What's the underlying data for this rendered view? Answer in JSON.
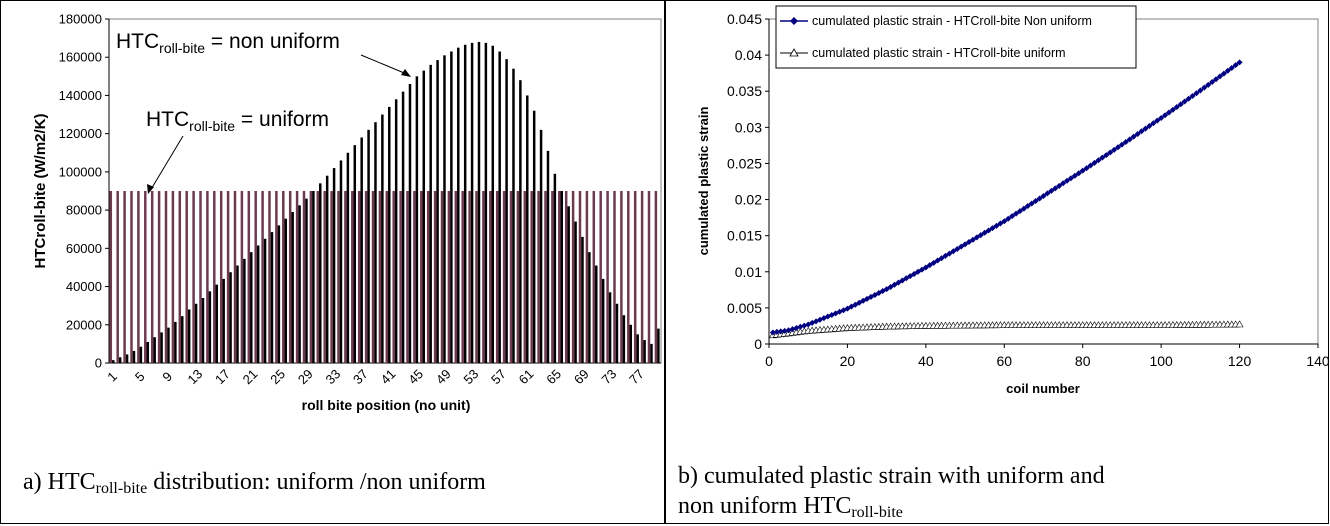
{
  "panel_a": {
    "caption": {
      "prefix": "a) HTC",
      "sub": "roll-bite",
      "suffix": " distribution: uniform /non uniform"
    },
    "annotations": {
      "non_uniform": {
        "prefix": "HTC",
        "sub": "roll-bite",
        "suffix": " = non uniform"
      },
      "uniform": {
        "prefix": "HTC",
        "sub": "roll-bite",
        "suffix": " = uniform"
      }
    }
  },
  "panel_b": {
    "caption": {
      "line1": "b) cumulated plastic strain with uniform and",
      "line2_prefix": "non uniform HTC",
      "line2_sub": "roll-bite"
    }
  },
  "colors": {
    "uniform_bar": "#6b3a4f",
    "non_uniform_bar": "#000000",
    "non_uniform_series": "#000080",
    "uniform_series": "#000000",
    "plot_border": "#808080"
  },
  "chart_data": [
    {
      "type": "bar",
      "xlabel": "roll bite position (no unit)",
      "ylabel": "HTCroll-bite (W/m2/K)",
      "ylim": [
        0,
        180000
      ],
      "y_ticks": [
        "0",
        "20000",
        "40000",
        "60000",
        "80000",
        "100000",
        "120000",
        "140000",
        "160000",
        "180000"
      ],
      "x_tick_labels": [
        "1",
        "5",
        "9",
        "13",
        "17",
        "21",
        "25",
        "29",
        "33",
        "37",
        "41",
        "45",
        "49",
        "53",
        "57",
        "61",
        "65",
        "69",
        "73",
        "77"
      ],
      "n_positions": 80,
      "legend": "none",
      "series": [
        {
          "values": [
            90000,
            90000,
            90000,
            90000,
            90000,
            90000,
            90000,
            90000,
            90000,
            90000,
            90000,
            90000,
            90000,
            90000,
            90000,
            90000,
            90000,
            90000,
            90000,
            90000,
            90000,
            90000,
            90000,
            90000,
            90000,
            90000,
            90000,
            90000,
            90000,
            90000,
            90000,
            90000,
            90000,
            90000,
            90000,
            90000,
            90000,
            90000,
            90000,
            90000,
            90000,
            90000,
            90000,
            90000,
            90000,
            90000,
            90000,
            90000,
            90000,
            90000,
            90000,
            90000,
            90000,
            90000,
            90000,
            90000,
            90000,
            90000,
            90000,
            90000,
            90000,
            90000,
            90000,
            90000,
            90000,
            90000,
            90000,
            90000,
            90000,
            90000,
            90000,
            90000,
            90000,
            90000,
            90000,
            90000,
            90000,
            90000,
            90000,
            90000
          ]
        },
        {
          "values": [
            1500,
            3000,
            4500,
            6300,
            8500,
            11000,
            13500,
            16000,
            18500,
            21500,
            24500,
            28000,
            31000,
            34000,
            37500,
            41000,
            44000,
            47500,
            51000,
            54500,
            58000,
            61500,
            65000,
            68500,
            72000,
            75500,
            79000,
            82500,
            86000,
            90000,
            94000,
            98000,
            102000,
            106000,
            110000,
            114000,
            118000,
            122000,
            126000,
            130000,
            134000,
            138000,
            142000,
            146000,
            150000,
            153000,
            156000,
            158500,
            161000,
            163000,
            165000,
            166500,
            167500,
            168000,
            167500,
            166000,
            163000,
            159000,
            154000,
            148000,
            140000,
            132000,
            122000,
            111000,
            99000,
            90000,
            82000,
            74000,
            66000,
            58000,
            51000,
            44000,
            37000,
            31000,
            25000,
            20000,
            15000,
            12000,
            10000,
            18000
          ]
        }
      ]
    },
    {
      "type": "line",
      "xlabel": "coil number",
      "ylabel": "cumulated plastic strain",
      "xlim": [
        0,
        140
      ],
      "ylim": [
        0,
        0.045
      ],
      "x_ticks": [
        "0",
        "20",
        "40",
        "60",
        "80",
        "100",
        "120",
        "140"
      ],
      "y_ticks": [
        "0",
        "0.005",
        "0.01",
        "0.015",
        "0.02",
        "0.025",
        "0.03",
        "0.035",
        "0.04",
        "0.045"
      ],
      "legend": "top-left",
      "series": [
        {
          "name": "cumulated plastic strain - HTCroll-bite Non uniform",
          "x": [
            1,
            5,
            10,
            20,
            30,
            40,
            50,
            60,
            70,
            80,
            90,
            100,
            110,
            120
          ],
          "y": [
            0.0016,
            0.0019,
            0.0027,
            0.0049,
            0.0076,
            0.0106,
            0.0138,
            0.017,
            0.0205,
            0.024,
            0.0276,
            0.0313,
            0.0351,
            0.039
          ]
        },
        {
          "name": "cumulated plastic strain - HTCroll-bite uniform",
          "x": [
            1,
            10,
            20,
            30,
            40,
            60,
            80,
            100,
            120
          ],
          "y": [
            0.0012,
            0.0018,
            0.0022,
            0.0024,
            0.0025,
            0.0026,
            0.0026,
            0.0026,
            0.0027
          ]
        }
      ]
    }
  ]
}
